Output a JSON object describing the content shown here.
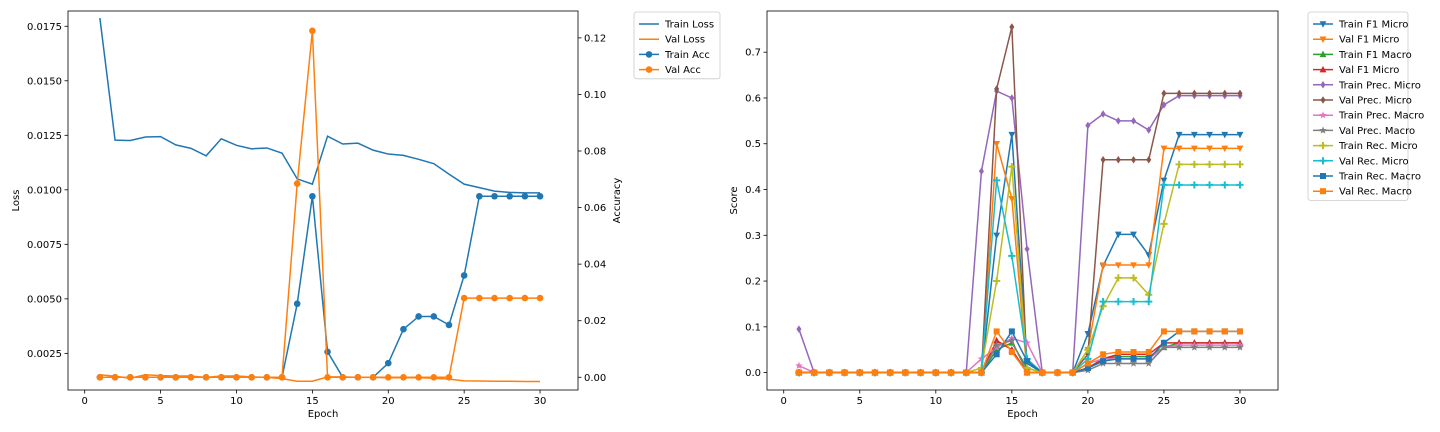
{
  "chart_data": [
    {
      "type": "line",
      "xlabel": "Epoch",
      "ylabel": "Loss",
      "y2label": "Accuracy",
      "xlim": [
        -1.1,
        32.5
      ],
      "ylim": [
        0.00082,
        0.0182
      ],
      "y2lim": [
        -0.0045,
        0.1295
      ],
      "xticks": [
        0,
        5,
        10,
        15,
        20,
        25,
        30
      ],
      "yticks": [
        0.0025,
        0.005,
        0.0075,
        0.01,
        0.0125,
        0.015,
        0.0175
      ],
      "yticklabels": [
        "0.0025",
        "0.0050",
        "0.0075",
        "0.0100",
        "0.0125",
        "0.0150",
        "0.0175"
      ],
      "y2ticks": [
        0.0,
        0.02,
        0.04,
        0.06,
        0.08,
        0.1,
        0.12
      ],
      "y2ticklabels": [
        "0.00",
        "0.02",
        "0.04",
        "0.06",
        "0.08",
        "0.10",
        "0.12"
      ],
      "legend_position": "outside-top-right",
      "x": [
        1,
        2,
        3,
        4,
        5,
        6,
        7,
        8,
        9,
        10,
        11,
        12,
        13,
        14,
        15,
        16,
        17,
        18,
        19,
        20,
        21,
        22,
        23,
        24,
        25,
        26,
        27,
        28,
        29,
        30
      ],
      "series": [
        {
          "name": "Train Loss",
          "axis": "left",
          "color": "#1f77b4",
          "marker": "none",
          "values": [
            0.01788,
            0.01228,
            0.01226,
            0.01242,
            0.01244,
            0.01206,
            0.0119,
            0.01156,
            0.01234,
            0.01204,
            0.01188,
            0.01192,
            0.01168,
            0.0105,
            0.01026,
            0.01246,
            0.0121,
            0.01214,
            0.01182,
            0.01164,
            0.01158,
            0.0114,
            0.0112,
            0.01072,
            0.01026,
            0.0101,
            0.00994,
            0.00988,
            0.00986,
            0.00986
          ]
        },
        {
          "name": "Val Loss",
          "axis": "left",
          "color": "#ff7f0e",
          "marker": "none",
          "values": [
            0.00152,
            0.00145,
            0.00136,
            0.00152,
            0.00148,
            0.00146,
            0.00146,
            0.0014,
            0.00146,
            0.00146,
            0.00142,
            0.0014,
            0.00134,
            0.00122,
            0.00122,
            0.00142,
            0.00142,
            0.0014,
            0.0014,
            0.00138,
            0.00138,
            0.00138,
            0.00136,
            0.00132,
            0.00124,
            0.00123,
            0.00122,
            0.00122,
            0.00121,
            0.00121
          ]
        },
        {
          "name": "Train Acc",
          "axis": "right",
          "color": "#1f77b4",
          "marker": "circle",
          "values": [
            0,
            0,
            0,
            0,
            0,
            0,
            0,
            0,
            0,
            0,
            0,
            0,
            0,
            0.026,
            0.064,
            0.009,
            0,
            0,
            0,
            0.005,
            0.017,
            0.0215,
            0.0215,
            0.0185,
            0.036,
            0.064,
            0.064,
            0.064,
            0.064,
            0.064
          ]
        },
        {
          "name": "Val Acc",
          "axis": "right",
          "color": "#ff7f0e",
          "marker": "circle",
          "values": [
            0,
            0,
            0,
            0,
            0,
            0,
            0,
            0,
            0,
            0,
            0,
            0,
            0,
            0.0685,
            0.1225,
            0,
            0,
            0,
            0,
            0,
            0,
            0,
            0,
            0,
            0.028,
            0.028,
            0.028,
            0.028,
            0.028,
            0.028
          ]
        }
      ]
    },
    {
      "type": "line",
      "xlabel": "Epoch",
      "ylabel": "Score",
      "xlim": [
        -1.1,
        32.5
      ],
      "ylim": [
        -0.038,
        0.79
      ],
      "xticks": [
        0,
        5,
        10,
        15,
        20,
        25,
        30
      ],
      "yticks": [
        0.0,
        0.1,
        0.2,
        0.3,
        0.4,
        0.5,
        0.6,
        0.7
      ],
      "yticklabels": [
        "0.0",
        "0.1",
        "0.2",
        "0.3",
        "0.4",
        "0.5",
        "0.6",
        "0.7"
      ],
      "legend_position": "outside-top-right",
      "x": [
        1,
        2,
        3,
        4,
        5,
        6,
        7,
        8,
        9,
        10,
        11,
        12,
        13,
        14,
        15,
        16,
        17,
        18,
        19,
        20,
        21,
        22,
        23,
        24,
        25,
        26,
        27,
        28,
        29,
        30
      ],
      "series": [
        {
          "name": "Train F1 Micro",
          "color": "#1f77b4",
          "marker": "triangle-down",
          "values": [
            0,
            0,
            0,
            0,
            0,
            0,
            0,
            0,
            0,
            0,
            0,
            0,
            0,
            0.3,
            0.52,
            0.02,
            0,
            0,
            0,
            0.085,
            0.233,
            0.302,
            0.302,
            0.257,
            0.42,
            0.52,
            0.52,
            0.52,
            0.52,
            0.52
          ]
        },
        {
          "name": "Val F1 Micro",
          "color": "#ff7f0e",
          "marker": "triangle-down",
          "values": [
            0,
            0,
            0,
            0,
            0,
            0,
            0,
            0,
            0,
            0,
            0,
            0,
            0,
            0.5,
            0.38,
            0,
            0,
            0,
            0,
            0.05,
            0.235,
            0.235,
            0.235,
            0.235,
            0.49,
            0.49,
            0.49,
            0.49,
            0.49,
            0.49
          ]
        },
        {
          "name": "Train F1 Macro",
          "color": "#2ca02c",
          "marker": "triangle-up",
          "values": [
            0,
            0,
            0,
            0,
            0,
            0,
            0,
            0,
            0,
            0,
            0,
            0,
            0,
            0.05,
            0.065,
            0.01,
            0,
            0,
            0,
            0.01,
            0.03,
            0.035,
            0.035,
            0.035,
            0.055,
            0.065,
            0.065,
            0.065,
            0.065,
            0.065
          ]
        },
        {
          "name": "Val F1 Micro",
          "color": "#d62728",
          "marker": "triangle-up",
          "values": [
            0,
            0,
            0,
            0,
            0,
            0,
            0,
            0,
            0,
            0,
            0,
            0,
            0,
            0.07,
            0.05,
            0,
            0,
            0,
            0,
            0.01,
            0.03,
            0.04,
            0.04,
            0.04,
            0.065,
            0.065,
            0.065,
            0.065,
            0.065,
            0.065
          ]
        },
        {
          "name": "Train Prec. Micro",
          "color": "#9467bd",
          "marker": "diamond",
          "values": [
            0.095,
            0,
            0,
            0,
            0,
            0,
            0,
            0,
            0,
            0,
            0,
            0,
            0.44,
            0.615,
            0.6,
            0.27,
            0,
            0,
            0,
            0.54,
            0.565,
            0.55,
            0.55,
            0.53,
            0.585,
            0.605,
            0.605,
            0.605,
            0.605,
            0.605
          ]
        },
        {
          "name": "Val Prec. Micro",
          "color": "#8c564b",
          "marker": "diamond",
          "values": [
            0,
            0,
            0,
            0,
            0,
            0,
            0,
            0,
            0,
            0,
            0,
            0,
            0,
            0.62,
            0.755,
            0,
            0,
            0,
            0,
            0.04,
            0.465,
            0.465,
            0.465,
            0.465,
            0.61,
            0.61,
            0.61,
            0.61,
            0.61,
            0.61
          ]
        },
        {
          "name": "Train Prec. Macro",
          "color": "#e377c2",
          "marker": "star",
          "values": [
            0.015,
            0,
            0,
            0,
            0,
            0,
            0,
            0,
            0,
            0,
            0,
            0,
            0.03,
            0.055,
            0.075,
            0.065,
            0,
            0,
            0,
            0.02,
            0.03,
            0.03,
            0.03,
            0.03,
            0.055,
            0.06,
            0.06,
            0.06,
            0.06,
            0.06
          ]
        },
        {
          "name": "Val Prec. Macro",
          "color": "#7f7f7f",
          "marker": "star",
          "values": [
            0,
            0,
            0,
            0,
            0,
            0,
            0,
            0,
            0,
            0,
            0,
            0,
            0,
            0.06,
            0.07,
            0,
            0,
            0,
            0,
            0.005,
            0.02,
            0.02,
            0.02,
            0.02,
            0.055,
            0.055,
            0.055,
            0.055,
            0.055,
            0.055
          ]
        },
        {
          "name": "Train Rec. Micro",
          "color": "#bcbd22",
          "marker": "plus",
          "values": [
            0,
            0,
            0,
            0,
            0,
            0,
            0,
            0,
            0,
            0,
            0,
            0,
            0.01,
            0.2,
            0.45,
            0.01,
            0,
            0,
            0,
            0.05,
            0.145,
            0.207,
            0.207,
            0.17,
            0.325,
            0.455,
            0.455,
            0.455,
            0.455,
            0.455
          ]
        },
        {
          "name": "Val Rec. Micro",
          "color": "#17becf",
          "marker": "plus",
          "values": [
            0,
            0,
            0,
            0,
            0,
            0,
            0,
            0,
            0,
            0,
            0,
            0,
            0,
            0.42,
            0.255,
            0.03,
            0,
            0,
            0,
            0.03,
            0.155,
            0.155,
            0.155,
            0.155,
            0.41,
            0.41,
            0.41,
            0.41,
            0.41,
            0.41
          ]
        },
        {
          "name": "Train Rec. Macro",
          "color": "#1f77b4",
          "marker": "square",
          "values": [
            0,
            0,
            0,
            0,
            0,
            0,
            0,
            0,
            0,
            0,
            0,
            0,
            0,
            0.04,
            0.09,
            0.025,
            0,
            0,
            0,
            0.01,
            0.025,
            0.03,
            0.03,
            0.03,
            0.065,
            0.09,
            0.09,
            0.09,
            0.09,
            0.09
          ]
        },
        {
          "name": "Val Rec. Macro",
          "color": "#ff7f0e",
          "marker": "square",
          "values": [
            0,
            0,
            0,
            0,
            0,
            0,
            0,
            0,
            0,
            0,
            0,
            0,
            0,
            0.09,
            0.045,
            0,
            0,
            0,
            0,
            0.02,
            0.04,
            0.045,
            0.045,
            0.045,
            0.09,
            0.09,
            0.09,
            0.09,
            0.09,
            0.09
          ]
        }
      ]
    }
  ]
}
